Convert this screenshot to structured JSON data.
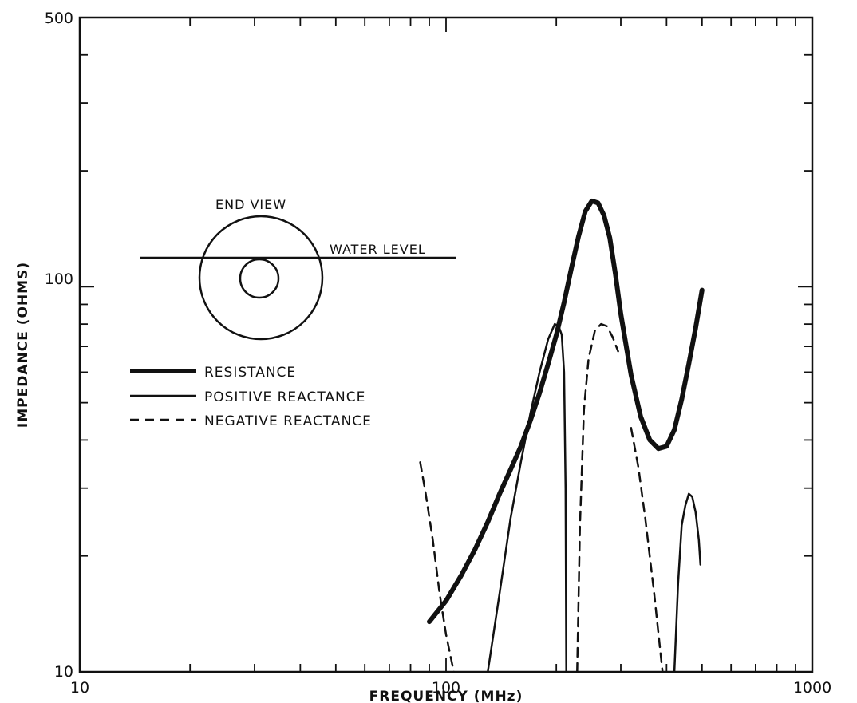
{
  "chart_data": {
    "type": "line",
    "title": "",
    "xlabel": "FREQUENCY (MHz)",
    "ylabel": "IMPEDANCE (OHMS)",
    "xscale": "log",
    "yscale": "log",
    "xlim": [
      10,
      1000
    ],
    "ylim": [
      10,
      500
    ],
    "x_tick_labels": [
      "10",
      "100",
      "1000"
    ],
    "y_tick_labels": [
      "10",
      "100",
      "500"
    ],
    "grid": false,
    "legend_placement": "left",
    "legend": [
      {
        "label": "RESISTANCE",
        "style": "thick-solid"
      },
      {
        "label": "POSITIVE REACTANCE",
        "style": "solid"
      },
      {
        "label": "NEGATIVE REACTANCE",
        "style": "dashed"
      }
    ],
    "annotations": {
      "end_view": "END VIEW",
      "water_level": "WATER LEVEL"
    },
    "series": [
      {
        "name": "RESISTANCE",
        "style": "thick-solid",
        "segments": [
          [
            [
              90,
              13.5
            ],
            [
              100,
              15.3
            ],
            [
              110,
              17.8
            ],
            [
              120,
              20.8
            ],
            [
              130,
              24.5
            ],
            [
              140,
              29
            ],
            [
              150,
              33.5
            ],
            [
              160,
              38.5
            ],
            [
              170,
              45
            ],
            [
              180,
              53
            ],
            [
              190,
              63
            ],
            [
              200,
              75
            ],
            [
              210,
              91
            ],
            [
              220,
              112
            ],
            [
              230,
              135
            ],
            [
              240,
              157
            ],
            [
              250,
              167
            ],
            [
              260,
              165
            ],
            [
              270,
              153
            ],
            [
              280,
              134
            ],
            [
              290,
              108
            ],
            [
              300,
              85
            ],
            [
              320,
              59
            ],
            [
              340,
              46
            ],
            [
              360,
              40
            ],
            [
              380,
              38
            ],
            [
              400,
              38.5
            ],
            [
              420,
              42.5
            ],
            [
              440,
              51
            ],
            [
              460,
              63
            ],
            [
              480,
              78
            ],
            [
              500,
              98
            ]
          ]
        ]
      },
      {
        "name": "POSITIVE REACTANCE",
        "style": "solid",
        "segments": [
          [
            [
              130,
              10
            ],
            [
              140,
              16
            ],
            [
              150,
              25
            ],
            [
              160,
              35
            ],
            [
              170,
              47
            ],
            [
              180,
              60
            ],
            [
              190,
              73
            ],
            [
              198,
              80
            ],
            [
              203,
              79
            ],
            [
              207,
              75
            ],
            [
              210,
              60
            ],
            [
              212,
              30
            ],
            [
              213,
              10
            ]
          ],
          [
            [
              420,
              10
            ],
            [
              430,
              17
            ],
            [
              440,
              24
            ],
            [
              450,
              27
            ],
            [
              460,
              29
            ],
            [
              470,
              28.5
            ],
            [
              480,
              26
            ],
            [
              490,
              22
            ],
            [
              495,
              19
            ]
          ]
        ]
      },
      {
        "name": "NEGATIVE REACTANCE",
        "style": "dashed",
        "segments": [
          [
            [
              85,
              35
            ],
            [
              88,
              29
            ],
            [
              92,
              22
            ],
            [
              96,
              16
            ],
            [
              100,
              12.5
            ],
            [
              105,
              10
            ]
          ],
          [
            [
              228,
              10
            ],
            [
              232,
              24
            ],
            [
              238,
              48
            ],
            [
              245,
              65
            ],
            [
              255,
              77
            ],
            [
              265,
              80
            ],
            [
              275,
              79
            ],
            [
              285,
              74
            ],
            [
              295,
              68
            ]
          ],
          [
            [
              320,
              43
            ],
            [
              335,
              34
            ],
            [
              350,
              25
            ],
            [
              370,
              16
            ],
            [
              390,
              10
            ]
          ]
        ]
      }
    ]
  }
}
